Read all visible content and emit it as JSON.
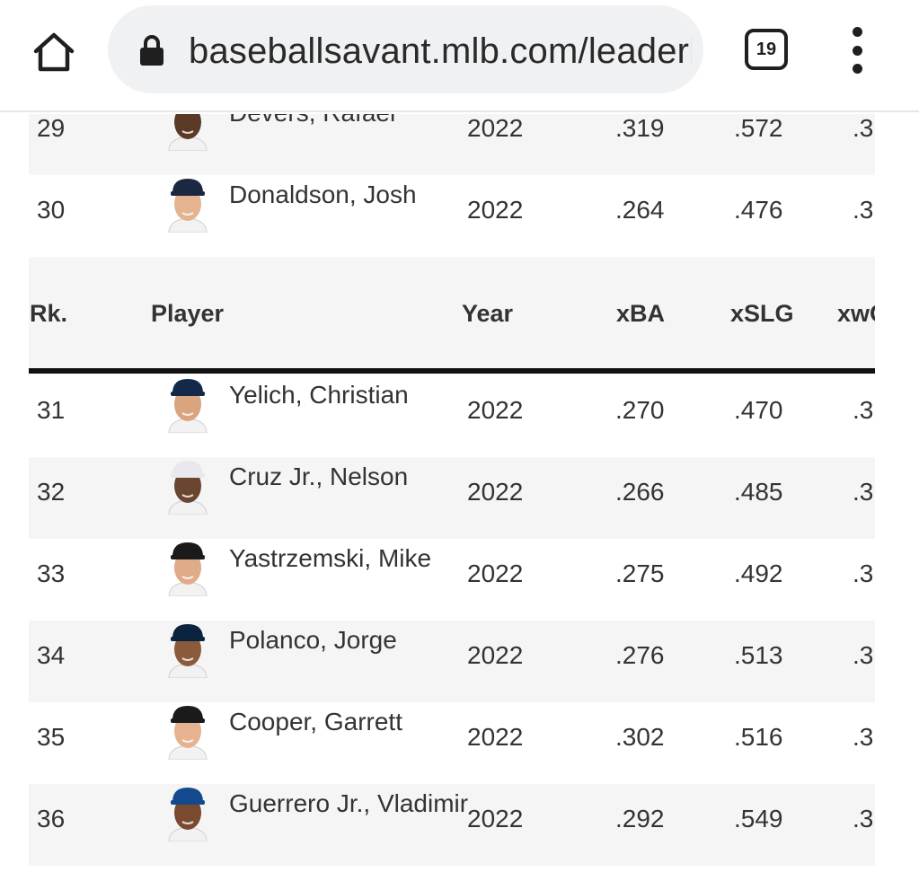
{
  "browser": {
    "url": "baseballsavant.mlb.com/leaderboard",
    "tab_count": "19",
    "icons": {
      "home": "home-icon",
      "lock": "lock-icon",
      "menu": "more-vert-icon"
    }
  },
  "table": {
    "headers": {
      "rk": "Rk.",
      "player": "Player",
      "year": "Year",
      "xba": "xBA",
      "xslg": "xSLG",
      "xwoba": "xwOBA"
    },
    "rows_before": [
      {
        "rk": "29",
        "player": "Devers, Rafael",
        "year": "2022",
        "xba": ".319",
        "xslg": ".572",
        "xwoba": ".3",
        "cap": "#1a1a1a",
        "skin": "#5a3a26"
      },
      {
        "rk": "30",
        "player": "Donaldson, Josh",
        "year": "2022",
        "xba": ".264",
        "xslg": ".476",
        "xwoba": ".3",
        "cap": "#1c2841",
        "skin": "#e3b48f"
      }
    ],
    "rows_after": [
      {
        "rk": "31",
        "player": "Yelich, Christian",
        "year": "2022",
        "xba": ".270",
        "xslg": ".470",
        "xwoba": ".3",
        "cap": "#13294b",
        "skin": "#d9a47e"
      },
      {
        "rk": "32",
        "player": "Cruz Jr., Nelson",
        "year": "2022",
        "xba": ".266",
        "xslg": ".485",
        "xwoba": ".3",
        "cap": "#e8e8ee",
        "skin": "#6a4530"
      },
      {
        "rk": "33",
        "player": "Yastrzemski, Mike",
        "year": "2022",
        "xba": ".275",
        "xslg": ".492",
        "xwoba": ".3",
        "cap": "#1a1a1a",
        "skin": "#e0ab88"
      },
      {
        "rk": "34",
        "player": "Polanco, Jorge",
        "year": "2022",
        "xba": ".276",
        "xslg": ".513",
        "xwoba": ".3",
        "cap": "#0c2340",
        "skin": "#8a5a3b"
      },
      {
        "rk": "35",
        "player": "Cooper, Garrett",
        "year": "2022",
        "xba": ".302",
        "xslg": ".516",
        "xwoba": ".3",
        "cap": "#1a1a1a",
        "skin": "#e6b28f"
      },
      {
        "rk": "36",
        "player": "Guerrero Jr., Vladimir",
        "year": "2022",
        "xba": ".292",
        "xslg": ".549",
        "xwoba": ".3",
        "cap": "#134a8e",
        "skin": "#7a4a30"
      }
    ]
  }
}
